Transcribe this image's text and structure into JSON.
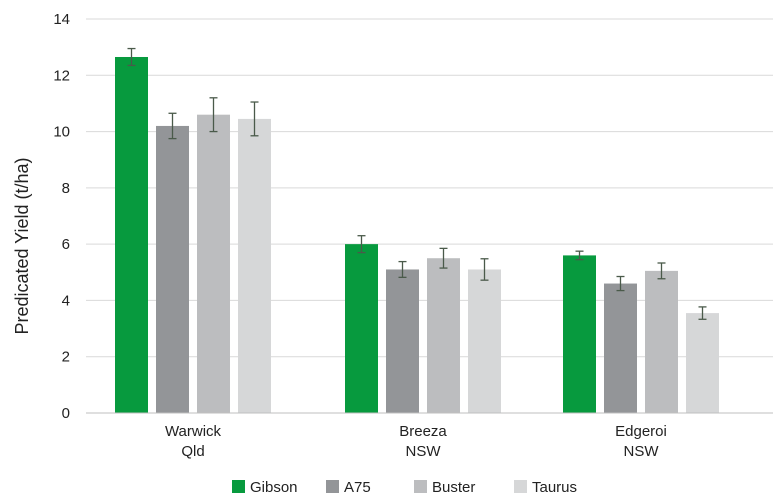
{
  "chart_data": {
    "type": "bar",
    "ylabel": "Predicated Yield (t/ha)",
    "ylim": [
      0,
      14
    ],
    "yticks": [
      0,
      2,
      4,
      6,
      8,
      10,
      12,
      14
    ],
    "grid": true,
    "legend_position": "bottom",
    "categories": [
      {
        "line1": "Warwick",
        "line2": "Qld"
      },
      {
        "line1": "Breeza",
        "line2": "NSW"
      },
      {
        "line1": "Edgeroi",
        "line2": "NSW"
      }
    ],
    "series": [
      {
        "name": "Gibson",
        "color": "#079a3e",
        "values": [
          12.65,
          6.0,
          5.6
        ],
        "errors": [
          0.3,
          0.3,
          0.15
        ]
      },
      {
        "name": "A75",
        "color": "#939598",
        "values": [
          10.2,
          5.1,
          4.6
        ],
        "errors": [
          0.45,
          0.28,
          0.25
        ]
      },
      {
        "name": "Buster",
        "color": "#bcbdbf",
        "values": [
          10.6,
          5.5,
          5.05
        ],
        "errors": [
          0.6,
          0.35,
          0.28
        ]
      },
      {
        "name": "Taurus",
        "color": "#d6d7d8",
        "values": [
          10.45,
          5.1,
          3.55
        ],
        "errors": [
          0.6,
          0.38,
          0.22
        ]
      }
    ]
  }
}
